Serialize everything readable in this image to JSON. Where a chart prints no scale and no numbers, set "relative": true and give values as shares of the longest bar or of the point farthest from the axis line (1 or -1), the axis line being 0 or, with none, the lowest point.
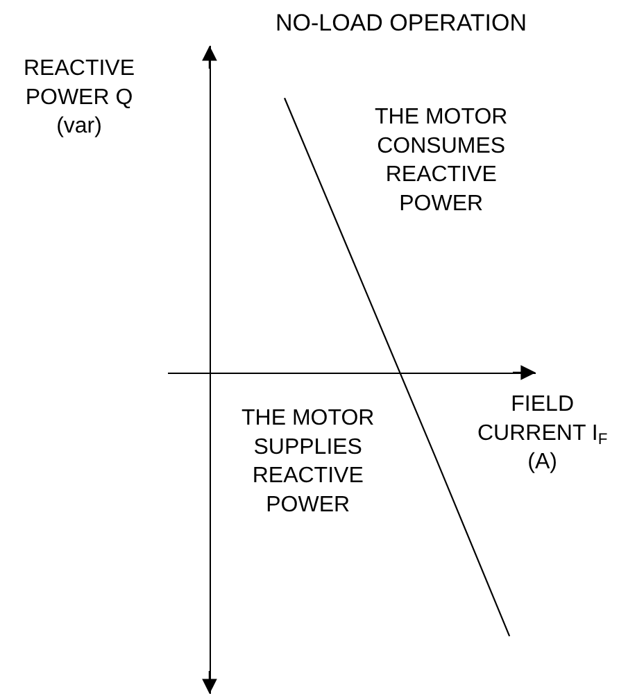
{
  "chart_data": {
    "type": "line",
    "title": "NO-LOAD OPERATION",
    "xlabel": "FIELD\nCURRENT I$_{F}$\n(A)",
    "ylabel": "REACTIVE\nPOWER Q\n(var)",
    "annotations": [
      "THE MOTOR\nCONSUMES\nREACTIVE\nPOWER",
      "THE MOTOR\nSUPPLIES\nREACTIVE\nPOWER"
    ],
    "categories": [
      null,
      null,
      null,
      null,
      null
    ],
    "relative": true,
    "line_style": "solid",
    "series": [
      {
        "color": "#000000",
        "values": [
          null,
          1,
          0.35,
          -0.3,
          -0.96
        ]
      }
    ]
  }
}
